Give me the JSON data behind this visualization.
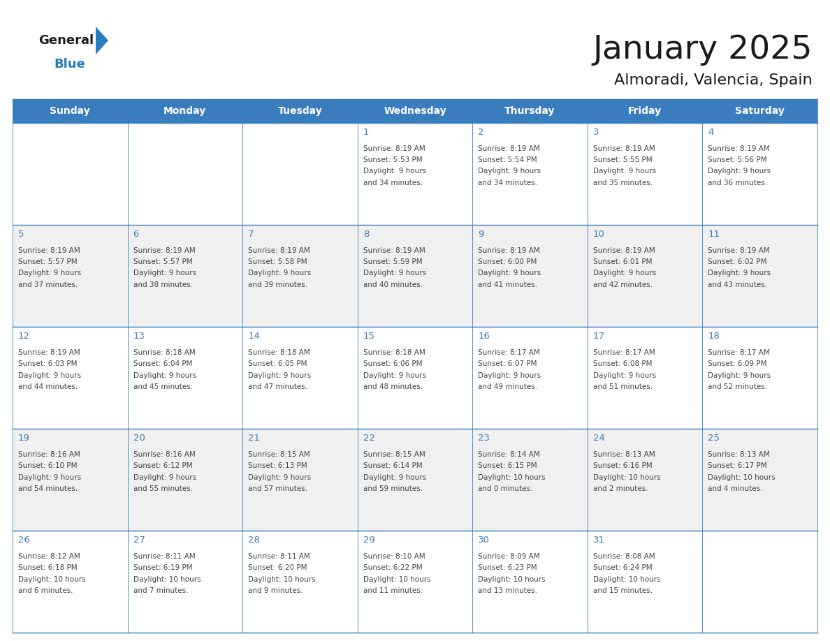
{
  "title": "January 2025",
  "subtitle": "Almoradi, Valencia, Spain",
  "header_bg_color": "#3a7dbf",
  "header_text_color": "#ffffff",
  "cell_bg_even": "#f0f0f0",
  "cell_bg_odd": "#ffffff",
  "border_color": "#3a7dbf",
  "text_color": "#444444",
  "day_number_color": "#3a7dbf",
  "days_of_week": [
    "Sunday",
    "Monday",
    "Tuesday",
    "Wednesday",
    "Thursday",
    "Friday",
    "Saturday"
  ],
  "calendar_data": [
    [
      {
        "day": "",
        "sunrise": "",
        "sunset": "",
        "daylight_h": "",
        "daylight_m": ""
      },
      {
        "day": "",
        "sunrise": "",
        "sunset": "",
        "daylight_h": "",
        "daylight_m": ""
      },
      {
        "day": "",
        "sunrise": "",
        "sunset": "",
        "daylight_h": "",
        "daylight_m": ""
      },
      {
        "day": "1",
        "sunrise": "8:19 AM",
        "sunset": "5:53 PM",
        "daylight_h": "9 hours",
        "daylight_m": "and 34 minutes."
      },
      {
        "day": "2",
        "sunrise": "8:19 AM",
        "sunset": "5:54 PM",
        "daylight_h": "9 hours",
        "daylight_m": "and 34 minutes."
      },
      {
        "day": "3",
        "sunrise": "8:19 AM",
        "sunset": "5:55 PM",
        "daylight_h": "9 hours",
        "daylight_m": "and 35 minutes."
      },
      {
        "day": "4",
        "sunrise": "8:19 AM",
        "sunset": "5:56 PM",
        "daylight_h": "9 hours",
        "daylight_m": "and 36 minutes."
      }
    ],
    [
      {
        "day": "5",
        "sunrise": "8:19 AM",
        "sunset": "5:57 PM",
        "daylight_h": "9 hours",
        "daylight_m": "and 37 minutes."
      },
      {
        "day": "6",
        "sunrise": "8:19 AM",
        "sunset": "5:57 PM",
        "daylight_h": "9 hours",
        "daylight_m": "and 38 minutes."
      },
      {
        "day": "7",
        "sunrise": "8:19 AM",
        "sunset": "5:58 PM",
        "daylight_h": "9 hours",
        "daylight_m": "and 39 minutes."
      },
      {
        "day": "8",
        "sunrise": "8:19 AM",
        "sunset": "5:59 PM",
        "daylight_h": "9 hours",
        "daylight_m": "and 40 minutes."
      },
      {
        "day": "9",
        "sunrise": "8:19 AM",
        "sunset": "6:00 PM",
        "daylight_h": "9 hours",
        "daylight_m": "and 41 minutes."
      },
      {
        "day": "10",
        "sunrise": "8:19 AM",
        "sunset": "6:01 PM",
        "daylight_h": "9 hours",
        "daylight_m": "and 42 minutes."
      },
      {
        "day": "11",
        "sunrise": "8:19 AM",
        "sunset": "6:02 PM",
        "daylight_h": "9 hours",
        "daylight_m": "and 43 minutes."
      }
    ],
    [
      {
        "day": "12",
        "sunrise": "8:19 AM",
        "sunset": "6:03 PM",
        "daylight_h": "9 hours",
        "daylight_m": "and 44 minutes."
      },
      {
        "day": "13",
        "sunrise": "8:18 AM",
        "sunset": "6:04 PM",
        "daylight_h": "9 hours",
        "daylight_m": "and 45 minutes."
      },
      {
        "day": "14",
        "sunrise": "8:18 AM",
        "sunset": "6:05 PM",
        "daylight_h": "9 hours",
        "daylight_m": "and 47 minutes."
      },
      {
        "day": "15",
        "sunrise": "8:18 AM",
        "sunset": "6:06 PM",
        "daylight_h": "9 hours",
        "daylight_m": "and 48 minutes."
      },
      {
        "day": "16",
        "sunrise": "8:17 AM",
        "sunset": "6:07 PM",
        "daylight_h": "9 hours",
        "daylight_m": "and 49 minutes."
      },
      {
        "day": "17",
        "sunrise": "8:17 AM",
        "sunset": "6:08 PM",
        "daylight_h": "9 hours",
        "daylight_m": "and 51 minutes."
      },
      {
        "day": "18",
        "sunrise": "8:17 AM",
        "sunset": "6:09 PM",
        "daylight_h": "9 hours",
        "daylight_m": "and 52 minutes."
      }
    ],
    [
      {
        "day": "19",
        "sunrise": "8:16 AM",
        "sunset": "6:10 PM",
        "daylight_h": "9 hours",
        "daylight_m": "and 54 minutes."
      },
      {
        "day": "20",
        "sunrise": "8:16 AM",
        "sunset": "6:12 PM",
        "daylight_h": "9 hours",
        "daylight_m": "and 55 minutes."
      },
      {
        "day": "21",
        "sunrise": "8:15 AM",
        "sunset": "6:13 PM",
        "daylight_h": "9 hours",
        "daylight_m": "and 57 minutes."
      },
      {
        "day": "22",
        "sunrise": "8:15 AM",
        "sunset": "6:14 PM",
        "daylight_h": "9 hours",
        "daylight_m": "and 59 minutes."
      },
      {
        "day": "23",
        "sunrise": "8:14 AM",
        "sunset": "6:15 PM",
        "daylight_h": "10 hours",
        "daylight_m": "and 0 minutes."
      },
      {
        "day": "24",
        "sunrise": "8:13 AM",
        "sunset": "6:16 PM",
        "daylight_h": "10 hours",
        "daylight_m": "and 2 minutes."
      },
      {
        "day": "25",
        "sunrise": "8:13 AM",
        "sunset": "6:17 PM",
        "daylight_h": "10 hours",
        "daylight_m": "and 4 minutes."
      }
    ],
    [
      {
        "day": "26",
        "sunrise": "8:12 AM",
        "sunset": "6:18 PM",
        "daylight_h": "10 hours",
        "daylight_m": "and 6 minutes."
      },
      {
        "day": "27",
        "sunrise": "8:11 AM",
        "sunset": "6:19 PM",
        "daylight_h": "10 hours",
        "daylight_m": "and 7 minutes."
      },
      {
        "day": "28",
        "sunrise": "8:11 AM",
        "sunset": "6:20 PM",
        "daylight_h": "10 hours",
        "daylight_m": "and 9 minutes."
      },
      {
        "day": "29",
        "sunrise": "8:10 AM",
        "sunset": "6:22 PM",
        "daylight_h": "10 hours",
        "daylight_m": "and 11 minutes."
      },
      {
        "day": "30",
        "sunrise": "8:09 AM",
        "sunset": "6:23 PM",
        "daylight_h": "10 hours",
        "daylight_m": "and 13 minutes."
      },
      {
        "day": "31",
        "sunrise": "8:08 AM",
        "sunset": "6:24 PM",
        "daylight_h": "10 hours",
        "daylight_m": "and 15 minutes."
      },
      {
        "day": "",
        "sunrise": "",
        "sunset": "",
        "daylight_h": "",
        "daylight_m": ""
      }
    ]
  ],
  "logo_text_general": "General",
  "logo_text_blue": "Blue",
  "logo_color_general": "#1a1a1a",
  "logo_color_blue": "#2b7bbf",
  "logo_triangle_color": "#2b7bbf",
  "fig_width": 11.88,
  "fig_height": 9.18,
  "dpi": 100
}
